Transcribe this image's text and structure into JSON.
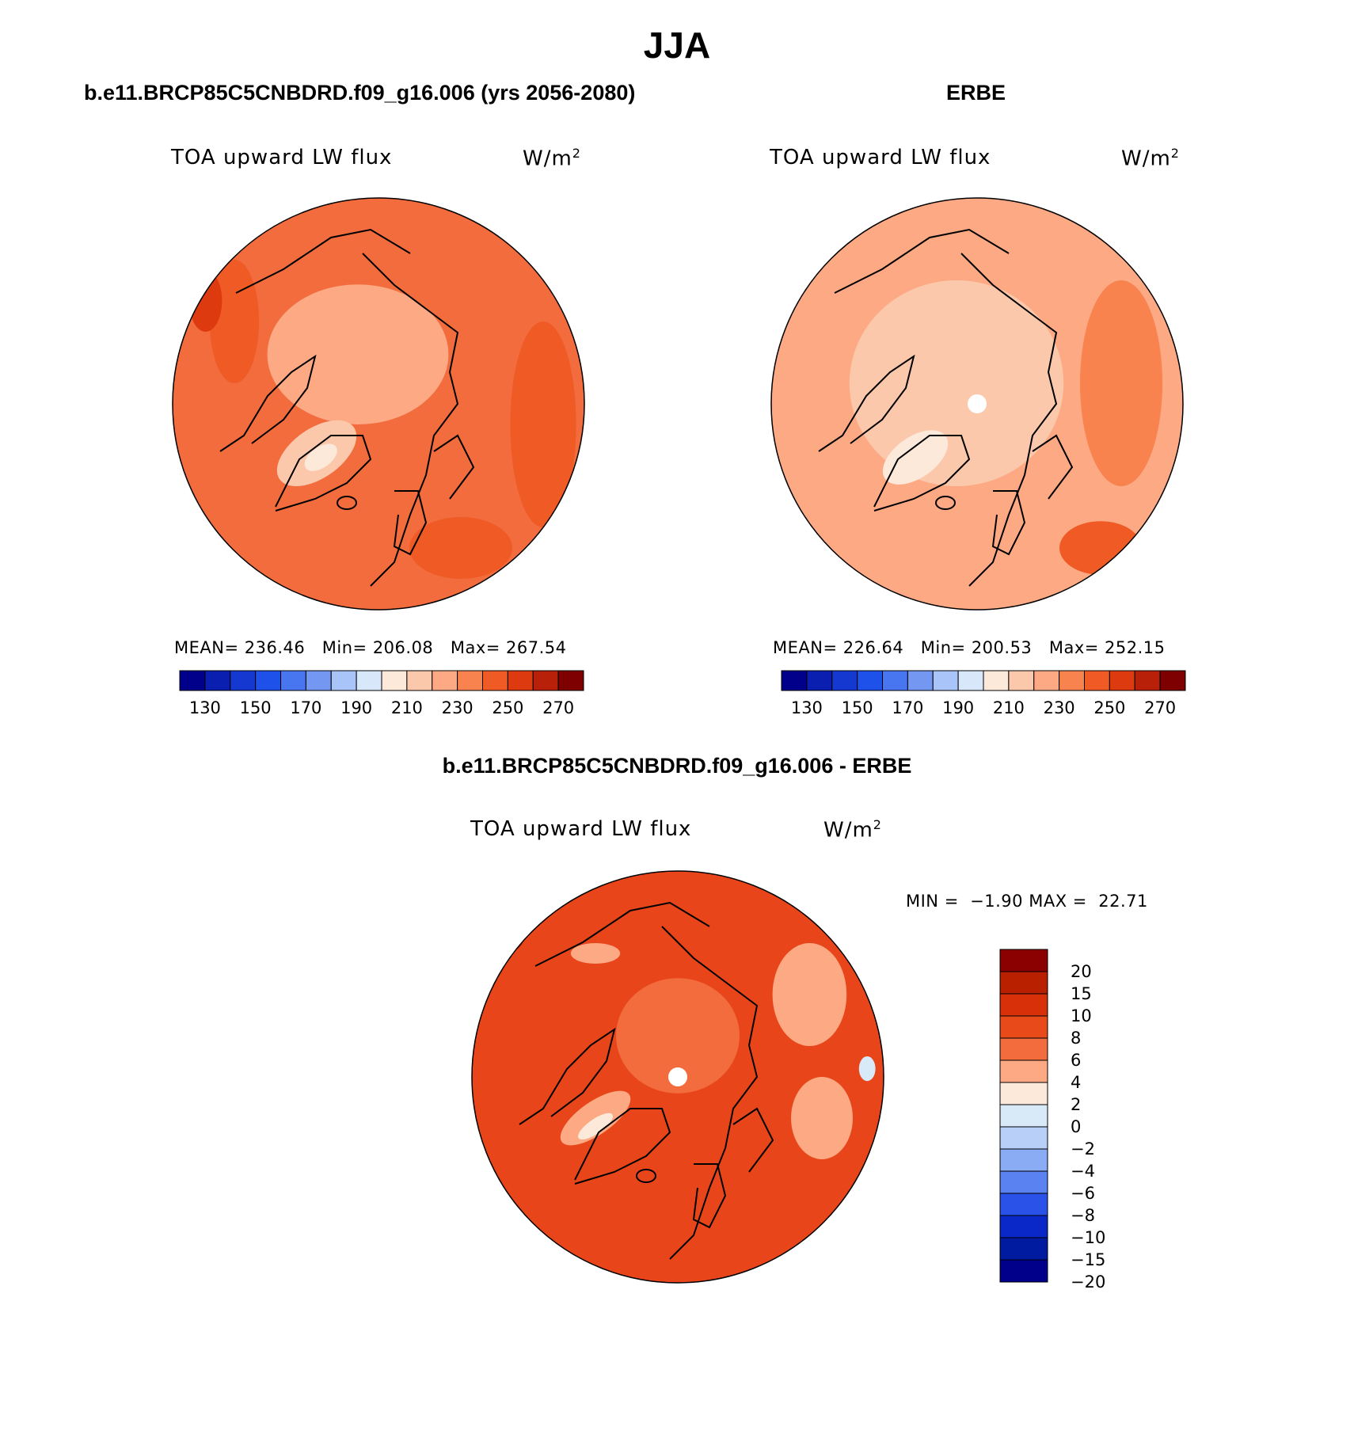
{
  "figure": {
    "title": "JJA",
    "colors": {
      "background": "#ffffff",
      "land_outline": "#000000",
      "missing": "#ffffff"
    }
  },
  "panels": [
    {
      "id": "model",
      "title": "b.e11.BRCP85C5CNBDRD.f09_g16.006 (yrs 2056-2080)",
      "variable": "TOA upward LW flux",
      "units_base": "W/m",
      "units_exp": "2",
      "stats": {
        "mean_label": "MEAN=",
        "mean": "236.46",
        "min_label": "Min=",
        "min": "206.08",
        "max_label": "Max=",
        "max": "267.54"
      },
      "base_color": "#f26c3d"
    },
    {
      "id": "obs",
      "title": "ERBE",
      "variable": "TOA upward LW flux",
      "units_base": "W/m",
      "units_exp": "2",
      "stats": {
        "mean_label": "MEAN=",
        "mean": "226.64",
        "min_label": "Min=",
        "min": "200.53",
        "max_label": "Max=",
        "max": "252.15"
      },
      "base_color": "#fca984"
    },
    {
      "id": "diff",
      "title": "b.e11.BRCP85C5CNBDRD.f09_g16.006 - ERBE",
      "variable": "TOA upward LW flux",
      "units_base": "W/m",
      "units_exp": "2",
      "stats": {
        "min_label": "MIN =",
        "min": "−1.90",
        "max_label": "MAX =",
        "max": "22.71"
      },
      "base_color": "#e8461a"
    }
  ],
  "colorbar_abs": {
    "colors": [
      "#00008b",
      "#0a1fb0",
      "#1438d0",
      "#1e50ea",
      "#4876f0",
      "#7498f2",
      "#a8c4f8",
      "#d8e8fa",
      "#fde9da",
      "#fcc8ac",
      "#fca984",
      "#f8834f",
      "#f05a25",
      "#de3a10",
      "#b8200a",
      "#7f0000"
    ],
    "tick_labels": [
      "130",
      "150",
      "170",
      "190",
      "210",
      "230",
      "250",
      "270"
    ]
  },
  "colorbar_diff": {
    "colors": [
      "#8b0000",
      "#b82000",
      "#d83008",
      "#e84a1a",
      "#f26c3d",
      "#fca984",
      "#fde9da",
      "#d8eaf8",
      "#b8d0f8",
      "#8aacf4",
      "#5a82f0",
      "#2a52e8",
      "#0a28c8",
      "#001aa0",
      "#00008b"
    ],
    "tick_labels": [
      "20",
      "15",
      "10",
      "8",
      "6",
      "4",
      "2",
      "0",
      "−2",
      "−4",
      "−6",
      "−8",
      "−10",
      "−15",
      "−20"
    ]
  }
}
